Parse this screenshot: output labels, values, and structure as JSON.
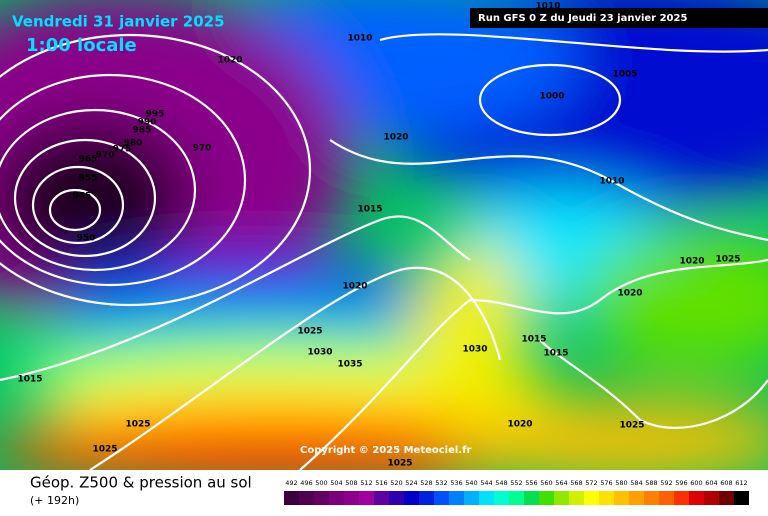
{
  "header": {
    "date": "Vendredi 31 janvier 2025",
    "time": "1:00 locale",
    "run": "Run GFS 0 Z du Jeudi 23 janvier 2025"
  },
  "isobar_labels": [
    1010,
    1020,
    1005,
    1000,
    1020,
    970,
    995,
    990,
    985,
    980,
    975,
    970,
    965,
    955,
    945,
    950,
    1015,
    1010,
    1020,
    1025,
    1020,
    1020,
    1025,
    1030,
    1035,
    1030,
    1015,
    1015,
    1015,
    1025,
    1025,
    1020,
    1025,
    1025,
    1010
  ],
  "copyright": "Copyright © 2025 Meteociel.fr",
  "legend": {
    "title": "Géop. Z500 & pression au sol",
    "subtitle": "(+ 192h)",
    "levels": [
      492,
      496,
      500,
      504,
      508,
      512,
      516,
      520,
      524,
      528,
      532,
      536,
      540,
      544,
      548,
      552,
      556,
      560,
      564,
      568,
      572,
      576,
      580,
      584,
      588,
      592,
      596,
      600,
      604,
      608,
      612
    ],
    "colors": [
      "#3c0040",
      "#500050",
      "#650065",
      "#7a007a",
      "#8c008c",
      "#a000a0",
      "#6000a0",
      "#3000b0",
      "#0000c8",
      "#0020e0",
      "#0050ff",
      "#0080ff",
      "#00b0ff",
      "#00e0ff",
      "#00ffd0",
      "#00ff90",
      "#00e050",
      "#40e000",
      "#90e800",
      "#d0f000",
      "#ffff00",
      "#ffe000",
      "#ffc000",
      "#ffa000",
      "#ff8000",
      "#ff6000",
      "#ff3000",
      "#e00000",
      "#b00000",
      "#700000",
      "#000000"
    ]
  }
}
